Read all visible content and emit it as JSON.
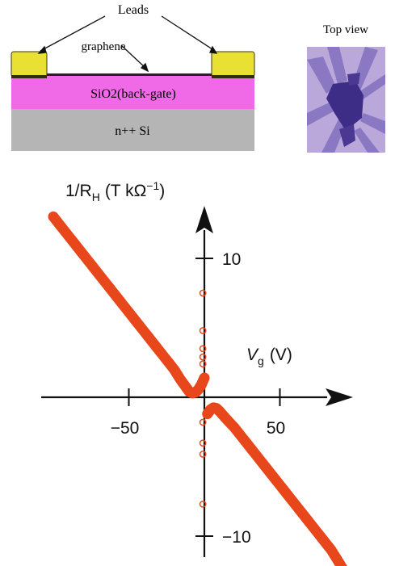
{
  "schematic": {
    "leads_label": "Leads",
    "graphene_label": "graphene",
    "oxide_label": "SiO2(back-gate)",
    "substrate_label": "n++ Si",
    "top_view_label": "Top view",
    "colors": {
      "lead": "#e8e032",
      "oxide": "#f06ae8",
      "substrate": "#b5b5b5",
      "device_bg": "#b9a8d9",
      "device_flake": "#3e2d86"
    }
  },
  "chart_data": {
    "type": "scatter",
    "ylabel": "1/R",
    "ylabel_sub": "H",
    "ylabel_unit": "(T kΩ",
    "ylabel_unit_sup": "−1",
    "ylabel_tail": ")",
    "xlabel": "V",
    "xlabel_sub": "g",
    "xlabel_unit": "(V)",
    "xlim": [
      -100,
      90
    ],
    "ylim": [
      -14,
      15
    ],
    "x_ticks": [
      {
        "value": -50,
        "label": "−50"
      },
      {
        "value": 50,
        "label": "50"
      }
    ],
    "y_ticks": [
      {
        "value": 10,
        "label": "10"
      },
      {
        "value": -10,
        "label": "−10"
      }
    ],
    "color": "#e8471c",
    "series": [
      {
        "style": "filled",
        "x": [
          -100,
          -92,
          -84,
          -76,
          -68,
          -60,
          -52,
          -44,
          -36,
          -28,
          -20,
          -16,
          -12,
          -10,
          -8,
          -6,
          -4,
          -2,
          0
        ],
        "y": [
          13.0,
          11.9,
          10.8,
          9.7,
          8.6,
          7.5,
          6.4,
          5.3,
          4.2,
          3.1,
          2.0,
          1.3,
          0.7,
          0.4,
          0.3,
          0.35,
          0.55,
          0.9,
          1.4
        ]
      },
      {
        "style": "filled",
        "x": [
          2,
          4,
          6,
          8,
          10,
          14,
          20,
          28,
          36,
          44,
          52,
          60,
          68,
          76,
          84,
          92
        ],
        "y": [
          -1.2,
          -0.9,
          -0.75,
          -0.8,
          -1.0,
          -1.5,
          -2.2,
          -3.3,
          -4.4,
          -5.5,
          -6.6,
          -7.7,
          -8.8,
          -9.9,
          -11.0,
          -12.4
        ]
      },
      {
        "style": "open",
        "x": [
          -1,
          -1,
          -1,
          -1,
          -1,
          -1,
          -1,
          -1,
          -1
        ],
        "y": [
          7.5,
          4.8,
          3.5,
          2.9,
          2.4,
          -1.8,
          -3.3,
          -4.1,
          -7.7
        ]
      }
    ]
  }
}
